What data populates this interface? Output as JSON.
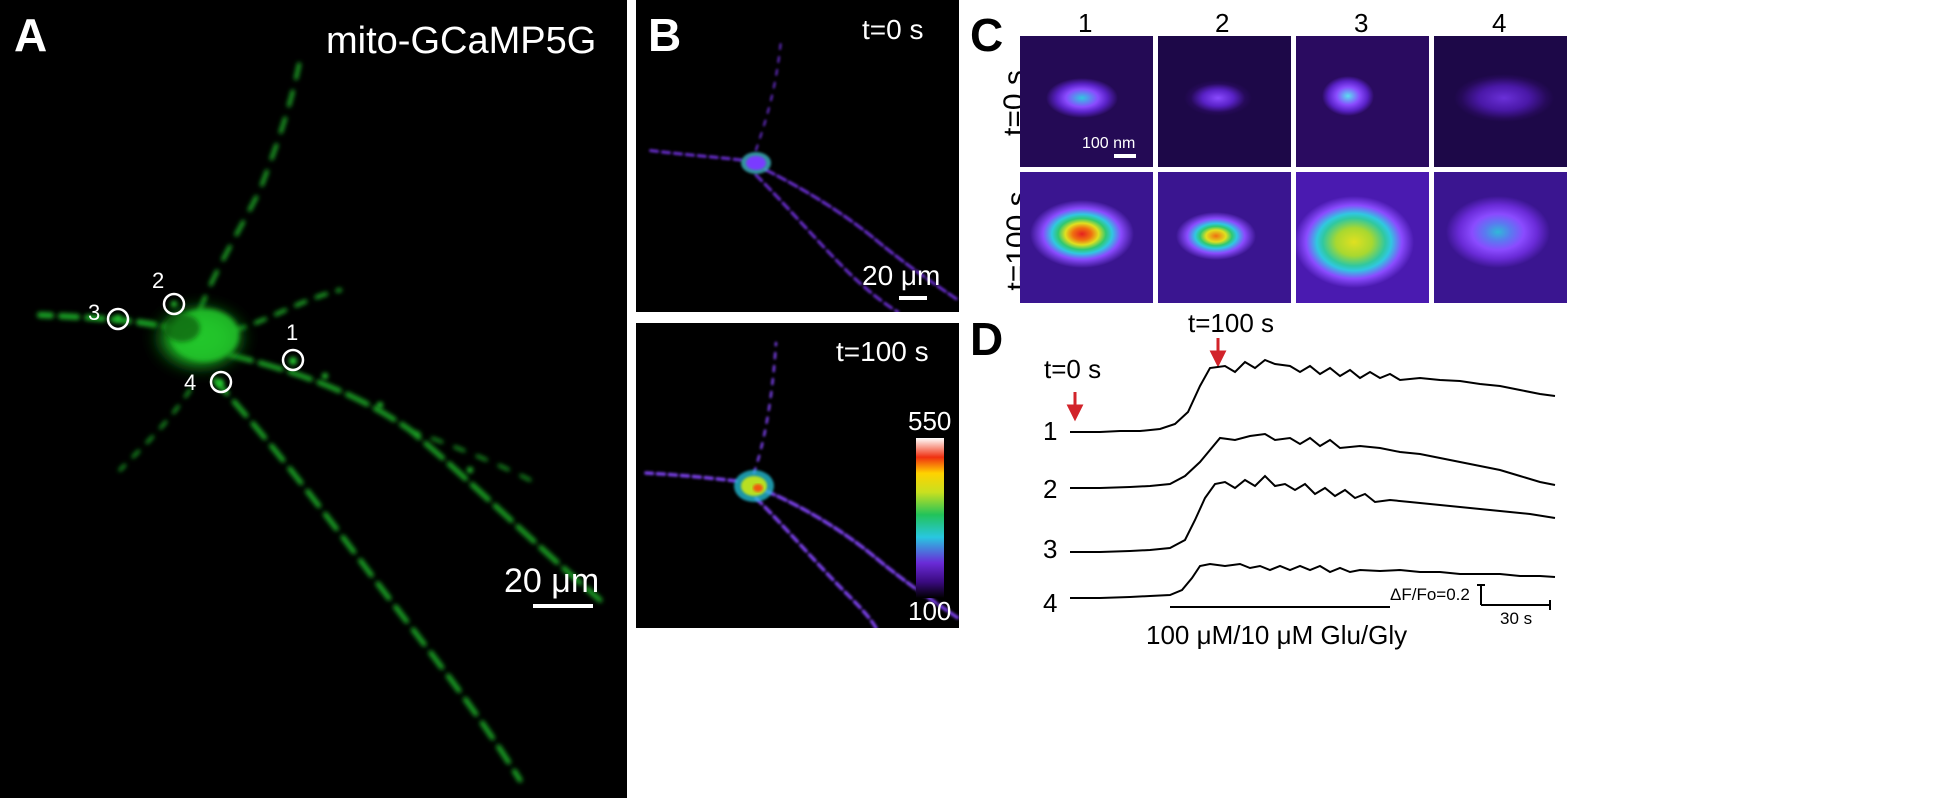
{
  "panels": {
    "A": {
      "letter": "A",
      "title": "mito-GCaMP5G",
      "roi_labels": [
        "1",
        "2",
        "3",
        "4"
      ],
      "scale_label": "20 μm"
    },
    "B": {
      "letter": "B",
      "top_time": "t=0 s",
      "bottom_time": "t=100 s",
      "scale_label": "20 μm",
      "colorbar_max": "550",
      "colorbar_min": "100"
    },
    "C": {
      "letter": "C",
      "columns": [
        "1",
        "2",
        "3",
        "4"
      ],
      "rows": [
        "t=0 s",
        "t=100 s"
      ],
      "scale_label": "100 nm"
    },
    "D": {
      "letter": "D",
      "marker_t0": "t=0 s",
      "marker_t100": "t=100 s",
      "trace_labels": [
        "1",
        "2",
        "3",
        "4"
      ],
      "amplitude_label": "ΔF/Fo=0.2",
      "time_label": "30 s",
      "stimulus_label": "100 μM/10 μM Glu/Gly"
    }
  },
  "colors": {
    "fluorescence_green": "#22c32a",
    "arrow_red": "#d2232a",
    "background_dark": "#000000"
  }
}
